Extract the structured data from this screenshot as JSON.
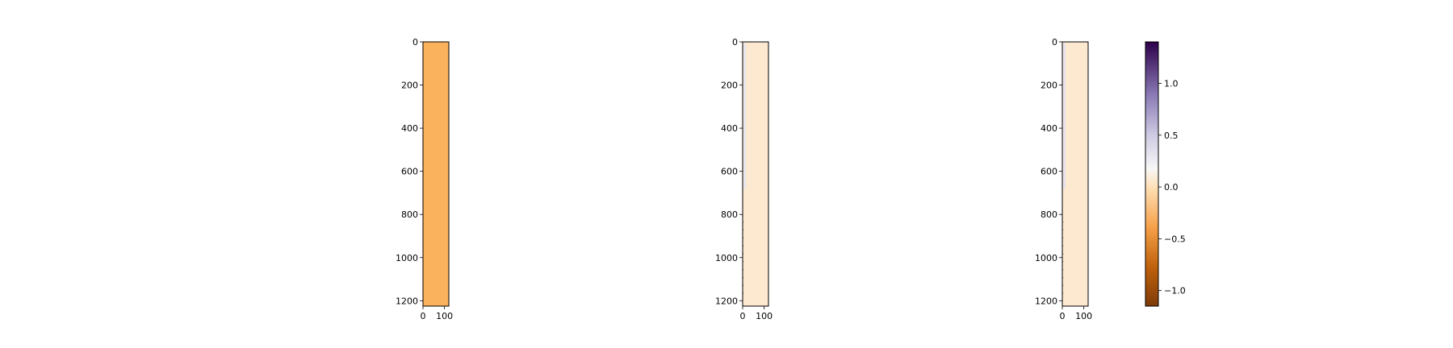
{
  "chart_data": [
    {
      "type": "heatmap",
      "panel": "left",
      "xlim": [
        0,
        120
      ],
      "ylim": [
        1225,
        0
      ],
      "xticks": [
        0,
        100
      ],
      "yticks": [
        0,
        200,
        400,
        600,
        800,
        1000,
        1200
      ],
      "fill_value": -0.32,
      "fill_color": "#fbb25c"
    },
    {
      "type": "heatmap",
      "panel": "middle",
      "xlim": [
        0,
        120
      ],
      "ylim": [
        1225,
        0
      ],
      "xticks": [
        0,
        100
      ],
      "yticks": [
        0,
        200,
        400,
        600,
        800,
        1000,
        1200
      ],
      "fill_value": -0.07,
      "fill_color": "#fde8d0",
      "edge_column_value": 0.12,
      "edge_column_color": "#e6e5f1"
    },
    {
      "type": "heatmap",
      "panel": "right",
      "xlim": [
        0,
        120
      ],
      "ylim": [
        1225,
        0
      ],
      "xticks": [
        0,
        100
      ],
      "yticks": [
        0,
        200,
        400,
        600,
        800,
        1000,
        1200
      ],
      "fill_value": -0.07,
      "fill_color": "#fde8d0",
      "edge_column_value": 0.15,
      "edge_column_color": "#e3e1ef",
      "colorbar": {
        "colormap": "PuOr",
        "range": [
          -1.15,
          1.4
        ],
        "ticks": [
          -1.0,
          -0.5,
          0.0,
          0.5,
          1.0
        ],
        "tick_labels": [
          "−1.0",
          "−0.5",
          "0.0",
          "0.5",
          "1.0"
        ]
      }
    }
  ]
}
